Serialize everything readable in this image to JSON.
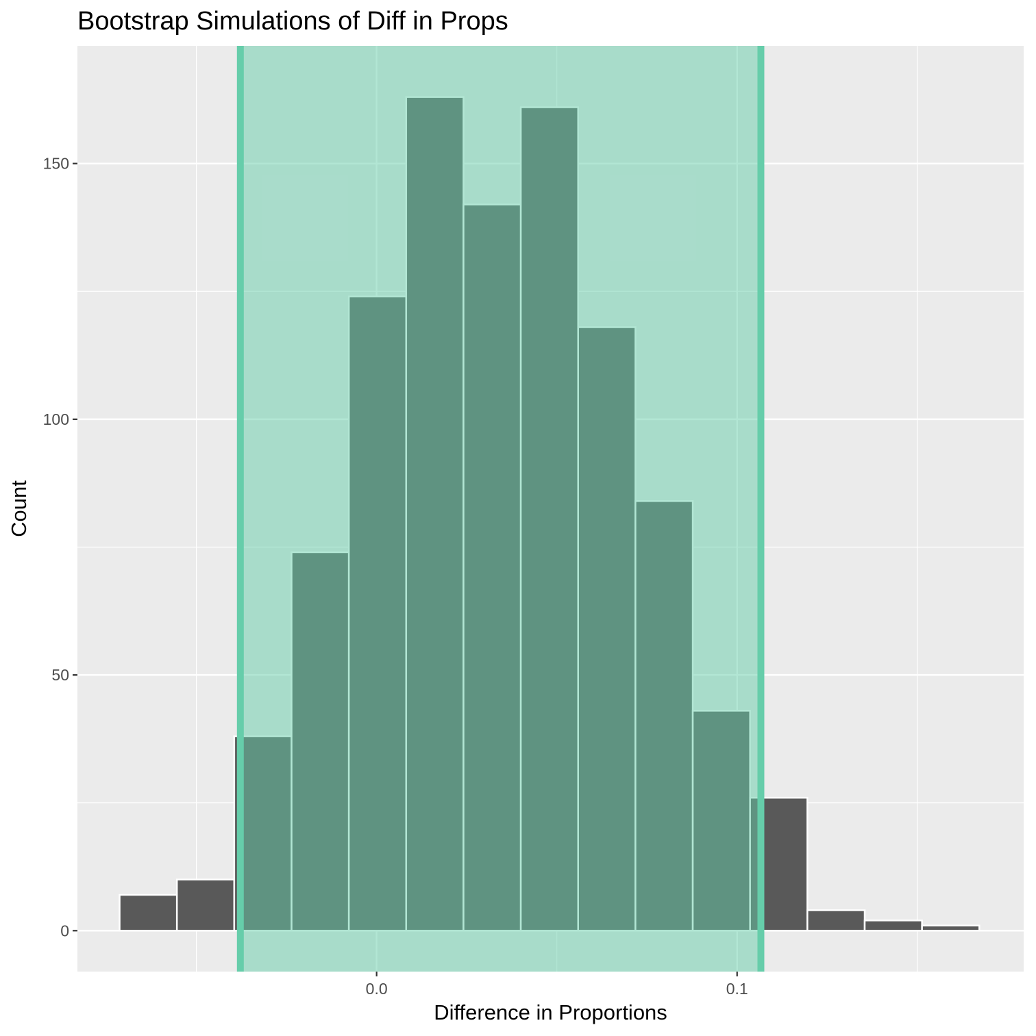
{
  "chart_data": {
    "type": "bar",
    "title": "Bootstrap Simulations of Diff in Props",
    "xlabel": "Difference in Proportions",
    "ylabel": "Count",
    "xlim": [
      -0.083,
      0.1795
    ],
    "ylim": [
      -8,
      173
    ],
    "x_ticks": [
      {
        "value": 0.0,
        "label": "0.0"
      },
      {
        "value": 0.1,
        "label": "0.1"
      }
    ],
    "y_ticks": [
      {
        "value": 0,
        "label": "0"
      },
      {
        "value": 50,
        "label": "50"
      },
      {
        "value": 100,
        "label": "100"
      },
      {
        "value": 150,
        "label": "150"
      }
    ],
    "x_minor_breaks": [
      -0.05,
      0.05,
      0.15
    ],
    "y_minor_breaks": [
      25,
      75,
      125
    ],
    "grid": true,
    "bins": [
      {
        "x0": -0.0713,
        "x1": -0.0554,
        "count": 7
      },
      {
        "x0": -0.0554,
        "x1": -0.0395,
        "count": 10
      },
      {
        "x0": -0.0395,
        "x1": -0.0236,
        "count": 38
      },
      {
        "x0": -0.0236,
        "x1": -0.0077,
        "count": 74
      },
      {
        "x0": -0.0077,
        "x1": 0.0082,
        "count": 124
      },
      {
        "x0": 0.0082,
        "x1": 0.0241,
        "count": 163
      },
      {
        "x0": 0.0241,
        "x1": 0.04,
        "count": 142
      },
      {
        "x0": 0.04,
        "x1": 0.0559,
        "count": 161
      },
      {
        "x0": 0.0559,
        "x1": 0.0718,
        "count": 118
      },
      {
        "x0": 0.0718,
        "x1": 0.0877,
        "count": 84
      },
      {
        "x0": 0.0877,
        "x1": 0.1036,
        "count": 43
      },
      {
        "x0": 0.1036,
        "x1": 0.1195,
        "count": 26
      },
      {
        "x0": 0.1195,
        "x1": 0.1354,
        "count": 4
      },
      {
        "x0": 0.1354,
        "x1": 0.1513,
        "count": 2
      },
      {
        "x0": 0.1513,
        "x1": 0.1672,
        "count": 1
      }
    ],
    "confidence_interval": {
      "lower": -0.0378,
      "upper": 0.1066
    },
    "colors": {
      "panel_background": "#ebebeb",
      "grid": "#ffffff",
      "bar_fill": "#595959",
      "bar_outline": "#ffffff",
      "ci_shade": "mediumaquamarine",
      "ci_shade_opacity": 0.5,
      "ci_line": "#66cdaa"
    }
  }
}
